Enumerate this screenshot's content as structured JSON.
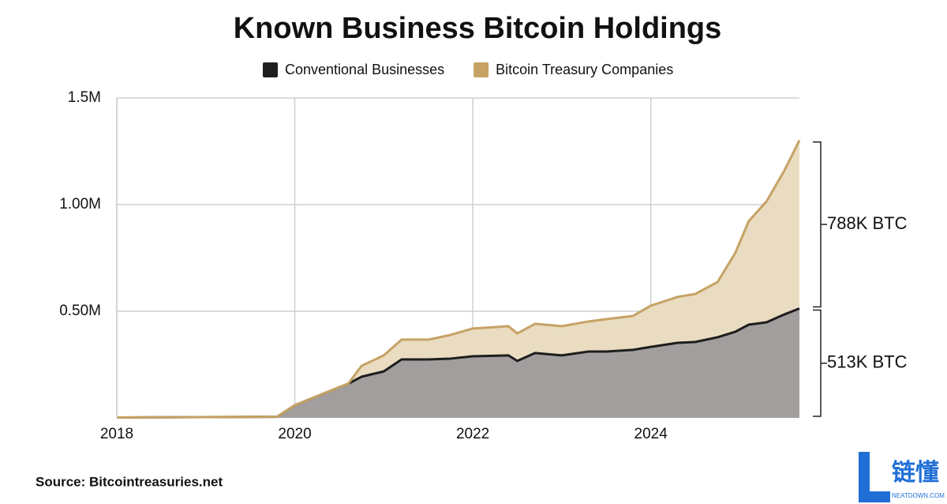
{
  "chart_data": {
    "type": "stacked_area",
    "title": "Known Business Bitcoin Holdings",
    "source": "Source: Bitcointreasuries.net",
    "watermark": {
      "brand": "链懂",
      "site": "NEATDOWN.COM"
    },
    "x": [
      2018,
      2019.8,
      2020,
      2020.5,
      2020.6,
      2020.75,
      2021,
      2021.2,
      2021.5,
      2021.75,
      2022,
      2022.4,
      2022.5,
      2022.7,
      2023,
      2023.3,
      2023.5,
      2023.8,
      2024,
      2024.3,
      2024.5,
      2024.75,
      2024.95,
      2025.1,
      2025.3,
      2025.5,
      2025.67
    ],
    "series": [
      {
        "name": "Conventional Businesses",
        "color": "#1e1e1e",
        "fill": "#a39e9e",
        "values": [
          2000,
          5000,
          59000,
          144000,
          160000,
          193000,
          218000,
          274000,
          274000,
          278000,
          289000,
          293000,
          267000,
          304000,
          293000,
          311000,
          311000,
          319000,
          333000,
          352000,
          356000,
          378000,
          404000,
          437000,
          448000,
          485000,
          513000
        ]
      },
      {
        "name": "Bitcoin Treasury Companies",
        "color": "#c6a265",
        "fill": "#e9dcc0",
        "values": [
          0,
          0,
          0,
          0,
          0,
          51000,
          75000,
          93000,
          93000,
          111000,
          130000,
          137000,
          129000,
          137000,
          137000,
          141000,
          152000,
          159000,
          193000,
          215000,
          225000,
          259000,
          370000,
          485000,
          567000,
          674000,
          788000
        ]
      }
    ],
    "annotations": [
      "788K BTC",
      "513K BTC"
    ],
    "xlim": [
      2018,
      2025.67
    ],
    "xticks": [
      2018,
      2020,
      2022,
      2024
    ],
    "ylim": [
      0,
      1500000
    ],
    "yticks": [
      {
        "value": 500000,
        "label": "0.50M"
      },
      {
        "value": 1000000,
        "label": "1.00M"
      },
      {
        "value": 1500000,
        "label": "1.5M"
      }
    ],
    "grid": true
  }
}
